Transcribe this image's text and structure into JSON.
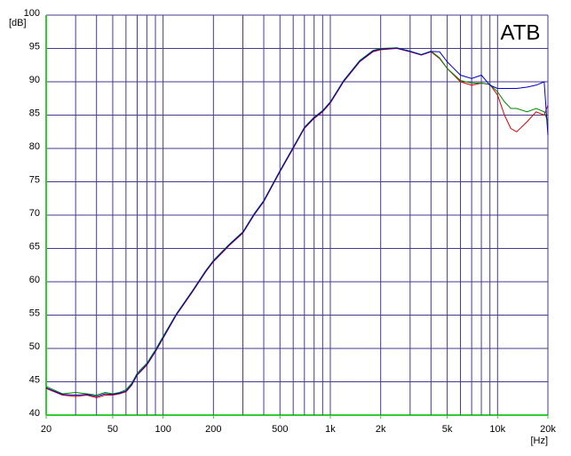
{
  "chart_data": {
    "type": "line",
    "annotation": "ATB",
    "ylabel": "[dB]",
    "xlabel": "[Hz]",
    "xscale": "log",
    "grid": true,
    "xlim": [
      20,
      20000
    ],
    "ylim": [
      40,
      100
    ],
    "yticks": [
      40,
      45,
      50,
      55,
      60,
      65,
      70,
      75,
      80,
      85,
      90,
      95,
      100
    ],
    "xticks": [
      20,
      50,
      100,
      200,
      500,
      {
        "value": 1000,
        "label": "1k"
      },
      {
        "value": 2000,
        "label": "2k"
      },
      {
        "value": 5000,
        "label": "5k"
      },
      {
        "value": 10000,
        "label": "10k"
      },
      {
        "value": 20000,
        "label": "20k"
      }
    ],
    "xgrid": [
      20,
      30,
      40,
      50,
      60,
      70,
      80,
      90,
      100,
      200,
      300,
      400,
      500,
      600,
      700,
      800,
      900,
      1000,
      2000,
      3000,
      4000,
      5000,
      6000,
      7000,
      8000,
      9000,
      10000,
      20000
    ],
    "x": [
      20,
      25,
      30,
      35,
      40,
      45,
      50,
      55,
      60,
      65,
      70,
      80,
      90,
      100,
      120,
      150,
      180,
      200,
      250,
      300,
      350,
      400,
      500,
      600,
      700,
      800,
      900,
      1000,
      1200,
      1500,
      1800,
      2000,
      2500,
      3000,
      3500,
      4000,
      4500,
      5000,
      6000,
      7000,
      8000,
      9000,
      10000,
      11000,
      12000,
      13000,
      15000,
      17000,
      19000,
      20000
    ],
    "series": [
      {
        "color": "#dd0000",
        "values": [
          44,
          43,
          42.8,
          43,
          42.6,
          43,
          43,
          43.2,
          43.5,
          44.5,
          46,
          47.5,
          49.5,
          51.5,
          55,
          58.5,
          61.5,
          63,
          65.5,
          67.3,
          70,
          72,
          76.5,
          80,
          83,
          84.5,
          85.5,
          86.8,
          90,
          93,
          94.5,
          94.8,
          95,
          94.5,
          94,
          94.5,
          93.5,
          92,
          90,
          89.5,
          89.8,
          89.6,
          88,
          85,
          83,
          82.5,
          84,
          85.5,
          85,
          86.5
        ]
      },
      {
        "color": "#008800",
        "values": [
          44.3,
          43.2,
          43.4,
          43.2,
          43,
          43.4,
          43.2,
          43.4,
          43.8,
          44.8,
          46.3,
          47.8,
          49.8,
          51.8,
          55.2,
          58.7,
          61.7,
          63.2,
          65.7,
          67.5,
          70.2,
          72.2,
          76.7,
          80.2,
          83.2,
          84.7,
          85.7,
          87,
          90.2,
          93.2,
          94.7,
          95,
          95.1,
          94.6,
          94.1,
          94.6,
          93.6,
          92,
          90.2,
          89.8,
          89.8,
          89.6,
          88.5,
          87,
          86,
          86,
          85.5,
          86,
          85.5,
          84
        ]
      },
      {
        "color": "#0000cc",
        "values": [
          44.1,
          43.1,
          43,
          43.1,
          42.8,
          43.2,
          43.1,
          43.3,
          43.6,
          44.6,
          46.1,
          47.6,
          49.6,
          51.6,
          55.1,
          58.6,
          61.6,
          63.1,
          65.6,
          67.4,
          70.1,
          72.1,
          76.6,
          80.1,
          83.1,
          84.6,
          85.6,
          86.9,
          90.1,
          93.1,
          94.6,
          94.9,
          95.05,
          94.55,
          94.05,
          94.55,
          94.5,
          93,
          91,
          90.5,
          91,
          89.5,
          89,
          89,
          89,
          89,
          89.2,
          89.5,
          90,
          82
        ]
      }
    ]
  }
}
